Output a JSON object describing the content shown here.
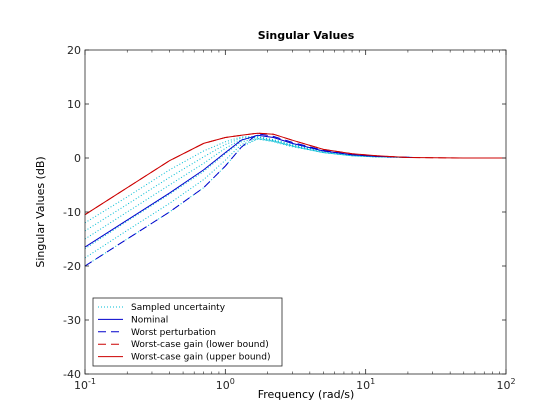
{
  "chart_data": {
    "type": "line",
    "title": "Singular Values",
    "xlabel": "Frequency (rad/s)",
    "ylabel": "Singular Values (dB)",
    "xscale": "log",
    "xlim": [
      0.1,
      100
    ],
    "ylim": [
      -40,
      20
    ],
    "grid": false,
    "legend_position": "bottom-left",
    "x_ticks": [
      {
        "value": 0.1,
        "base": "10",
        "exp": "-1"
      },
      {
        "value": 1,
        "base": "10",
        "exp": "0"
      },
      {
        "value": 10,
        "base": "10",
        "exp": "1"
      },
      {
        "value": 100,
        "base": "10",
        "exp": "2"
      }
    ],
    "y_ticks": [
      {
        "value": 20,
        "label": "20"
      },
      {
        "value": 10,
        "label": "10"
      },
      {
        "value": 0,
        "label": "0"
      },
      {
        "value": -10,
        "label": "-10"
      },
      {
        "value": -20,
        "label": "-20"
      },
      {
        "value": -30,
        "label": "-30"
      },
      {
        "value": -40,
        "label": "-40"
      }
    ],
    "sampled": [
      {
        "x": [
          0.1,
          0.2,
          0.4,
          0.7,
          1.0,
          1.3,
          1.7,
          2.2,
          3,
          5,
          8,
          12,
          22
        ],
        "y": [
          -12.0,
          -7.2,
          -2.2,
          1.3,
          3.0,
          3.9,
          4.0,
          3.4,
          2.5,
          1.3,
          0.6,
          0.3,
          0.1
        ]
      },
      {
        "x": [
          0.1,
          0.2,
          0.4,
          0.7,
          1.0,
          1.3,
          1.7,
          2.2,
          3,
          5,
          8,
          12,
          22
        ],
        "y": [
          -13.5,
          -8.6,
          -3.6,
          0.2,
          2.5,
          3.7,
          3.9,
          3.3,
          2.4,
          1.2,
          0.5,
          0.2,
          0.1
        ]
      },
      {
        "x": [
          0.1,
          0.2,
          0.4,
          0.7,
          1.0,
          1.3,
          1.7,
          2.2,
          3,
          5,
          8,
          12,
          22
        ],
        "y": [
          -15.0,
          -10.0,
          -5.0,
          -1.0,
          1.8,
          3.4,
          3.8,
          3.2,
          2.3,
          1.1,
          0.5,
          0.2,
          0.1
        ]
      },
      {
        "x": [
          0.1,
          0.2,
          0.4,
          0.7,
          1.0,
          1.3,
          1.7,
          2.2,
          3,
          5,
          8,
          12,
          22
        ],
        "y": [
          -16.8,
          -11.7,
          -6.7,
          -2.5,
          0.8,
          3.0,
          3.6,
          3.1,
          2.2,
          1.0,
          0.4,
          0.2,
          0.1
        ]
      },
      {
        "x": [
          0.1,
          0.2,
          0.4,
          0.7,
          1.0,
          1.3,
          1.7,
          2.2,
          3,
          5,
          8,
          12,
          22
        ],
        "y": [
          -18.5,
          -13.4,
          -8.4,
          -4.0,
          -0.4,
          2.5,
          3.5,
          3.0,
          2.1,
          1.0,
          0.4,
          0.2,
          0.1
        ]
      },
      {
        "x": [
          0.1,
          0.2,
          0.4,
          0.7,
          1.0,
          1.3,
          1.7,
          2.2,
          3,
          5,
          8,
          12,
          22
        ],
        "y": [
          -20.0,
          -15.0,
          -10.0,
          -5.5,
          -1.5,
          2.0,
          3.6,
          3.2,
          2.2,
          1.0,
          0.4,
          0.2,
          0.1
        ]
      }
    ],
    "series": [
      {
        "name": "Nominal",
        "color": "#0000cc",
        "dash": "solid",
        "x": [
          0.1,
          0.2,
          0.4,
          0.7,
          1.0,
          1.3,
          1.7,
          2.2,
          3,
          5,
          8,
          12,
          22
        ],
        "y": [
          -16.5,
          -11.5,
          -6.5,
          -2.2,
          1.0,
          3.3,
          4.2,
          3.8,
          2.7,
          1.3,
          0.6,
          0.3,
          0.1
        ]
      },
      {
        "name": "Worst perturbation",
        "color": "#0000cc",
        "dash": "8,5",
        "x": [
          0.1,
          0.2,
          0.4,
          0.7,
          1.0,
          1.3,
          1.7,
          2.2,
          3,
          5,
          8,
          12,
          22
        ],
        "y": [
          -20.0,
          -15.0,
          -10.0,
          -5.5,
          -1.5,
          2.0,
          4.5,
          4.0,
          2.9,
          1.4,
          0.6,
          0.3,
          0.1
        ]
      },
      {
        "name": "Worst-case gain (lower bound)",
        "color": "#cc0000",
        "dash": "8,5",
        "x": [
          0.1,
          0.2,
          0.4,
          0.7,
          1.0,
          1.3,
          1.7,
          2.2,
          3,
          5,
          8,
          12,
          20,
          50,
          100
        ],
        "y": [
          -10.5,
          -5.5,
          -0.5,
          2.7,
          3.8,
          4.2,
          4.6,
          4.4,
          3.3,
          1.6,
          0.8,
          0.4,
          0.1,
          0.0,
          0.0
        ]
      },
      {
        "name": "Worst-case gain (upper bound)",
        "color": "#cc0000",
        "dash": "solid",
        "x": [
          0.1,
          0.2,
          0.4,
          0.7,
          1.0,
          1.3,
          1.7,
          2.2,
          3,
          5,
          8,
          12,
          20,
          50,
          100
        ],
        "y": [
          -10.5,
          -5.5,
          -0.5,
          2.7,
          3.8,
          4.2,
          4.6,
          4.4,
          3.3,
          1.6,
          0.8,
          0.4,
          0.1,
          0.0,
          0.0
        ]
      }
    ],
    "legend": [
      {
        "label": "Sampled uncertainty",
        "color": "#00bcd4",
        "dash": "1,2"
      },
      {
        "label": "Nominal",
        "color": "#0000cc",
        "dash": ""
      },
      {
        "label": "Worst perturbation",
        "color": "#0000cc",
        "dash": "8,5"
      },
      {
        "label": "Worst-case gain (lower bound)",
        "color": "#cc0000",
        "dash": "8,5"
      },
      {
        "label": "Worst-case gain (upper bound)",
        "color": "#cc0000",
        "dash": ""
      }
    ],
    "sampled_color": "#00bcd4",
    "sampled_dash": "1,2"
  }
}
